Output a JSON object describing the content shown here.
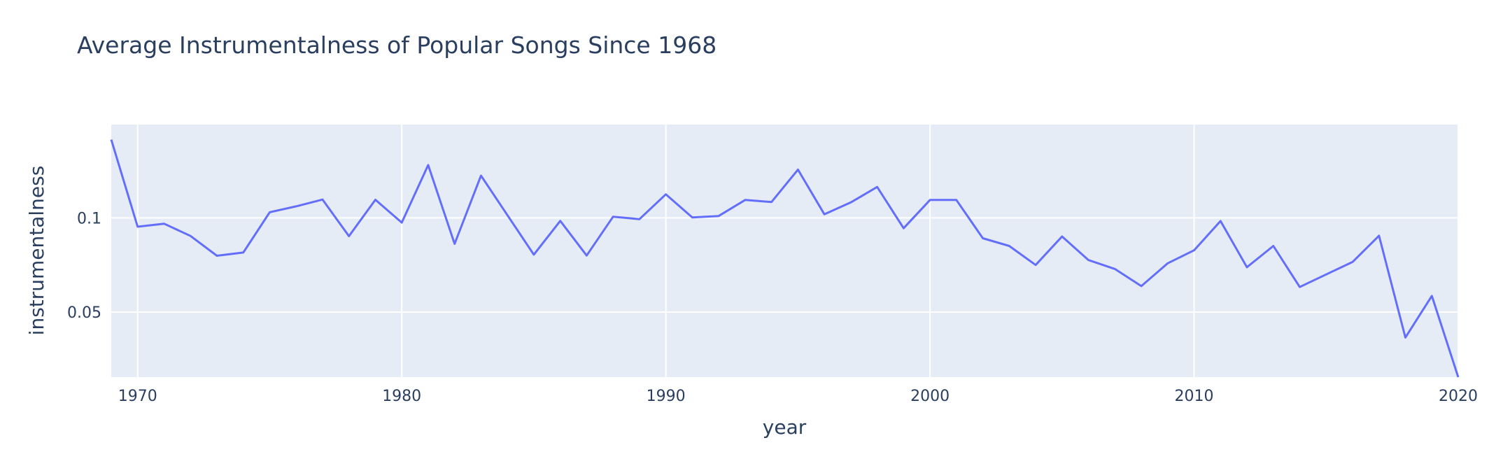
{
  "chart_data": {
    "type": "line",
    "title": "Average Instrumentalness of Popular Songs Since 1968",
    "xlabel": "year",
    "ylabel": "instrumentalness",
    "xlim": [
      1969,
      2020
    ],
    "ylim": [
      0.0155,
      0.1495
    ],
    "xticks": [
      1970,
      1980,
      1990,
      2000,
      2010,
      2020
    ],
    "yticks": [
      0.05,
      0.1
    ],
    "ytick_labels": [
      "0.05",
      "0.1"
    ],
    "grid": true,
    "colors": {
      "line": "#636efa",
      "plot_bg": "#e5ecf6",
      "grid": "#ffffff",
      "text": "#2a3f5f"
    },
    "series": [
      {
        "x": [
          1969,
          1970,
          1971,
          1972,
          1973,
          1974,
          1975,
          1976,
          1977,
          1978,
          1979,
          1980,
          1981,
          1982,
          1983,
          1984,
          1985,
          1986,
          1987,
          1988,
          1989,
          1990,
          1991,
          1992,
          1993,
          1994,
          1995,
          1996,
          1997,
          1998,
          1999,
          2000,
          2001,
          2002,
          2003,
          2004,
          2005,
          2006,
          2007,
          2008,
          2009,
          2010,
          2011,
          2012,
          2013,
          2014,
          2015,
          2016,
          2017,
          2018,
          2019,
          2020
        ],
        "values": [
          0.1415,
          0.0953,
          0.0969,
          0.0904,
          0.0799,
          0.0816,
          0.103,
          0.1061,
          0.1097,
          0.0903,
          0.1096,
          0.0975,
          0.128,
          0.0862,
          0.1224,
          0.1014,
          0.0805,
          0.0984,
          0.08,
          0.1006,
          0.0993,
          0.1125,
          0.1002,
          0.101,
          0.1095,
          0.1084,
          0.1256,
          0.1019,
          0.1082,
          0.1164,
          0.0945,
          0.1095,
          0.1095,
          0.0892,
          0.0851,
          0.075,
          0.0901,
          0.0776,
          0.0729,
          0.0638,
          0.0759,
          0.0828,
          0.0983,
          0.0738,
          0.0851,
          0.0633,
          0.07,
          0.0766,
          0.0905,
          0.0365,
          0.0586,
          0.0155
        ]
      }
    ]
  }
}
